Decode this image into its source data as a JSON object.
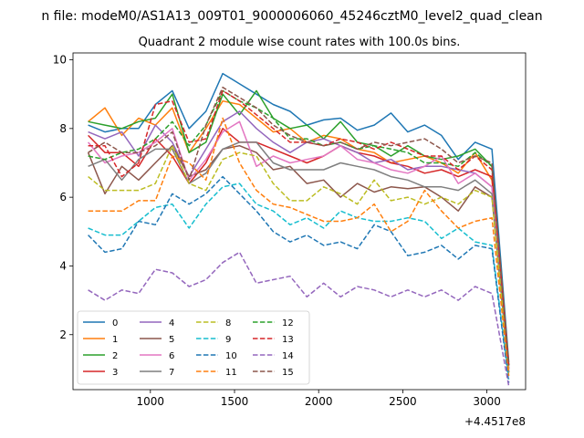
{
  "chart_data": {
    "type": "line",
    "suptitle": "n file: modeM0/AS1A13_009T01_9000006060_45246cztM0_level2_quad_clean",
    "title": "Quadrant 2 module wise count rates with 100.0s bins.",
    "xlabel": "",
    "ylabel": "",
    "x_offset_label": "+4.4517e8",
    "xlim": [
      540,
      3230
    ],
    "ylim": [
      0.4,
      10.2
    ],
    "xticks": [
      1000,
      1500,
      2000,
      2500,
      3000
    ],
    "xtick_labels": [
      "1000",
      "1500",
      "2000",
      "2500",
      "3000"
    ],
    "yticks": [
      2,
      4,
      6,
      8,
      10
    ],
    "ytick_labels": [
      "2",
      "4",
      "6",
      "8",
      "10"
    ],
    "grid": false,
    "legend": {
      "placement": "lower-left",
      "ncol": 4
    },
    "x": [
      630,
      730,
      830,
      930,
      1030,
      1130,
      1230,
      1330,
      1430,
      1530,
      1630,
      1730,
      1830,
      1930,
      2030,
      2130,
      2230,
      2330,
      2430,
      2530,
      2630,
      2730,
      2830,
      2930,
      3030,
      3130
    ],
    "series": [
      {
        "name": "0",
        "color": "#1f77b4",
        "dash": "solid",
        "values": [
          8.1,
          7.9,
          8.0,
          8.0,
          8.7,
          9.1,
          8.0,
          8.5,
          9.6,
          9.3,
          9.0,
          8.7,
          8.5,
          8.1,
          8.25,
          8.3,
          7.95,
          8.1,
          8.45,
          7.9,
          8.1,
          7.8,
          7.1,
          7.6,
          7.4,
          1.2
        ]
      },
      {
        "name": "1",
        "color": "#ff7f0e",
        "dash": "solid",
        "values": [
          8.2,
          8.6,
          7.8,
          8.3,
          8.1,
          8.6,
          7.3,
          8.0,
          8.8,
          8.7,
          8.3,
          7.9,
          8.0,
          7.6,
          7.8,
          7.7,
          7.4,
          7.3,
          7.0,
          7.1,
          7.2,
          7.0,
          6.7,
          7.3,
          6.5,
          1.1
        ]
      },
      {
        "name": "2",
        "color": "#2ca02c",
        "dash": "solid",
        "values": [
          8.2,
          8.1,
          8.0,
          8.2,
          8.3,
          9.0,
          7.3,
          7.6,
          9.0,
          8.4,
          9.1,
          8.3,
          8.0,
          8.1,
          7.7,
          8.2,
          7.6,
          7.5,
          7.2,
          7.5,
          7.2,
          7.1,
          7.2,
          7.4,
          6.9,
          1.1
        ]
      },
      {
        "name": "3",
        "color": "#d62728",
        "dash": "solid",
        "values": [
          7.8,
          7.3,
          7.3,
          6.9,
          7.7,
          7.2,
          6.4,
          7.0,
          8.0,
          7.6,
          7.6,
          7.4,
          7.2,
          7.0,
          7.2,
          7.5,
          7.3,
          7.2,
          7.0,
          6.9,
          6.7,
          6.8,
          6.6,
          6.8,
          6.6,
          1.0
        ]
      },
      {
        "name": "4",
        "color": "#9467bd",
        "dash": "solid",
        "values": [
          7.9,
          7.7,
          7.9,
          7.2,
          8.1,
          7.6,
          6.6,
          7.4,
          8.2,
          8.5,
          8.0,
          7.6,
          7.3,
          7.6,
          7.7,
          7.5,
          7.3,
          7.0,
          7.1,
          6.8,
          6.9,
          6.9,
          6.8,
          6.7,
          6.3,
          1.0
        ]
      },
      {
        "name": "5",
        "color": "#8c564b",
        "dash": "solid",
        "values": [
          7.3,
          6.1,
          6.9,
          6.5,
          7.0,
          7.5,
          6.6,
          6.8,
          7.4,
          7.5,
          7.3,
          6.8,
          6.9,
          6.4,
          6.5,
          6.0,
          6.4,
          6.15,
          6.3,
          6.25,
          6.3,
          6.0,
          5.6,
          6.3,
          6.0,
          0.9
        ]
      },
      {
        "name": "6",
        "color": "#e377c2",
        "dash": "solid",
        "values": [
          7.6,
          7.0,
          7.2,
          7.3,
          7.6,
          8.0,
          6.5,
          7.1,
          7.9,
          8.2,
          6.9,
          7.2,
          7.0,
          7.1,
          7.2,
          7.5,
          7.1,
          7.0,
          6.8,
          6.7,
          6.9,
          7.2,
          6.4,
          6.7,
          6.3,
          1.0
        ]
      },
      {
        "name": "7",
        "color": "#7f7f7f",
        "dash": "solid",
        "values": [
          6.9,
          7.1,
          6.5,
          7.1,
          7.4,
          7.4,
          6.4,
          6.7,
          7.4,
          7.6,
          7.6,
          7.0,
          6.8,
          6.8,
          6.8,
          7.0,
          6.9,
          6.8,
          6.6,
          6.5,
          6.3,
          6.3,
          6.2,
          6.5,
          6.1,
          0.9
        ]
      },
      {
        "name": "8",
        "color": "#bcbd22",
        "dash": "dashed",
        "values": [
          6.6,
          6.2,
          6.2,
          6.2,
          6.4,
          7.5,
          6.4,
          6.2,
          7.1,
          7.3,
          7.2,
          6.4,
          5.9,
          5.9,
          6.3,
          6.1,
          5.8,
          6.5,
          5.9,
          6.0,
          5.8,
          6.0,
          5.8,
          6.2,
          6.0,
          0.9
        ]
      },
      {
        "name": "9",
        "color": "#17becf",
        "dash": "dashed",
        "values": [
          5.1,
          4.9,
          4.9,
          5.3,
          5.7,
          5.8,
          5.1,
          5.8,
          6.3,
          6.4,
          5.8,
          5.6,
          5.2,
          5.4,
          5.1,
          5.6,
          5.4,
          5.3,
          5.3,
          5.4,
          5.3,
          4.8,
          5.1,
          4.7,
          4.6,
          0.7
        ]
      },
      {
        "name": "10",
        "color": "#1f77b4",
        "dash": "dashed",
        "values": [
          4.9,
          4.4,
          4.5,
          5.3,
          5.2,
          6.1,
          5.8,
          6.1,
          6.6,
          6.1,
          5.6,
          5.0,
          4.7,
          4.9,
          4.6,
          4.7,
          4.5,
          5.2,
          5.0,
          4.3,
          4.4,
          4.6,
          4.2,
          4.6,
          4.5,
          0.6
        ]
      },
      {
        "name": "11",
        "color": "#ff7f0e",
        "dash": "dashed",
        "values": [
          5.6,
          5.6,
          5.6,
          5.9,
          5.9,
          7.2,
          7.0,
          6.5,
          8.3,
          7.0,
          6.2,
          5.8,
          5.7,
          5.5,
          5.3,
          5.3,
          5.4,
          5.8,
          5.0,
          5.3,
          6.2,
          5.6,
          5.1,
          5.3,
          5.4,
          0.8
        ]
      },
      {
        "name": "12",
        "color": "#2ca02c",
        "dash": "dashed",
        "values": [
          7.2,
          7.1,
          7.3,
          7.4,
          7.7,
          8.2,
          7.5,
          8.1,
          9.1,
          8.8,
          8.6,
          8.3,
          7.7,
          7.7,
          7.5,
          7.6,
          7.4,
          7.5,
          7.4,
          7.3,
          7.0,
          7.0,
          6.9,
          7.3,
          6.9,
          1.1
        ]
      },
      {
        "name": "13",
        "color": "#d62728",
        "dash": "dashed",
        "values": [
          7.5,
          7.5,
          6.6,
          7.0,
          8.7,
          8.8,
          7.6,
          7.7,
          9.1,
          8.8,
          8.4,
          8.0,
          7.6,
          7.6,
          7.5,
          7.7,
          7.6,
          7.4,
          7.6,
          7.4,
          7.2,
          7.2,
          6.8,
          7.2,
          6.8,
          1.1
        ]
      },
      {
        "name": "14",
        "color": "#9467bd",
        "dash": "dashed",
        "values": [
          3.3,
          3.0,
          3.3,
          3.2,
          3.9,
          3.8,
          3.4,
          3.6,
          4.1,
          4.4,
          3.5,
          3.6,
          3.7,
          3.1,
          3.5,
          3.1,
          3.4,
          3.3,
          3.1,
          3.3,
          3.1,
          3.3,
          3.0,
          3.4,
          3.2,
          0.5
        ]
      },
      {
        "name": "15",
        "color": "#8c564b",
        "dash": "dashed",
        "values": [
          7.3,
          7.6,
          7.3,
          7.3,
          7.5,
          7.9,
          6.5,
          8.1,
          9.2,
          8.9,
          8.6,
          8.1,
          7.8,
          7.6,
          7.5,
          7.6,
          7.4,
          7.6,
          7.5,
          7.6,
          7.7,
          7.4,
          7.0,
          7.2,
          7.0,
          1.1
        ]
      }
    ]
  }
}
